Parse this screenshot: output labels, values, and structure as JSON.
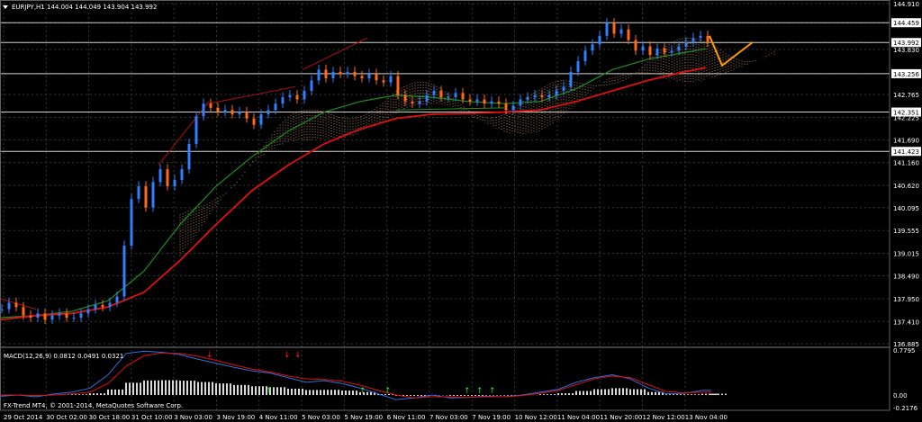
{
  "window": {
    "symbol_line": "EURJPY,H1  144.004 144.049 143.904 143.992",
    "copyright": "FX-Trend MT4, © 2001-2014, MetaQuotes Software Corp."
  },
  "macd": {
    "label": "MACD(12,26,9) 0.0812 0.0491 0.0321",
    "y_ticks": [
      "0.7795",
      "0.00",
      "-0.2176"
    ]
  },
  "colors": {
    "background": "#000000",
    "grid": "#2e3b2e",
    "axis": "#c0c0c0",
    "bull_candle": "#2f7fff",
    "bear_candle": "#ff6a1a",
    "ma_fast": "#1f8f1f",
    "ma_slow": "#e01010",
    "cloud": "#d4a373",
    "trend_line": "#b01010",
    "projection": "#ff9a00",
    "macd_hist": "#d8d8d8",
    "macd_main": "#2f6fe0",
    "macd_signal": "#e01010",
    "arrow_up": "#33dd33",
    "arrow_down": "#ff2020"
  },
  "chart_data": {
    "type": "line",
    "title": "EURJPY,H1  144.004 144.049 143.904 143.992",
    "y_ticks": [
      "144.910",
      "144.459",
      "143.992",
      "143.830",
      "143.256",
      "142.765",
      "142.351",
      "142.225",
      "141.690",
      "141.423",
      "141.160",
      "140.620",
      "140.095",
      "139.555",
      "139.015",
      "138.490",
      "137.950",
      "137.410",
      "136.885"
    ],
    "x_ticks": [
      "29 Oct 2014",
      "30 Oct 02:00",
      "30 Oct 18:00",
      "31 Oct 10:00",
      "3 Nov 03:00",
      "3 Nov 19:00",
      "4 Nov 11:00",
      "5 Nov 03:00",
      "5 Nov 19:00",
      "6 Nov 11:00",
      "7 Nov 03:00",
      "7 Nov 19:00",
      "10 Nov 12:00",
      "11 Nov 04:00",
      "11 Nov 20:00",
      "12 Nov 12:00",
      "13 Nov 04:00"
    ],
    "ylim": [
      136.885,
      144.91
    ],
    "highlight_levels": [
      144.459,
      143.992,
      143.256,
      142.351,
      141.423
    ],
    "series": [
      {
        "kind": "price",
        "x": [
          0,
          8,
          16,
          24,
          32,
          40,
          48,
          56,
          64,
          72,
          80,
          88,
          96,
          104,
          112,
          120,
          128,
          136,
          144,
          152,
          160,
          168,
          176,
          184,
          192,
          200,
          208,
          216,
          224,
          232,
          240,
          248,
          256,
          264,
          272,
          280,
          288,
          296,
          304,
          312,
          320,
          328,
          336,
          344,
          352,
          360,
          368,
          376,
          384,
          392,
          400,
          408,
          416,
          424,
          432,
          440,
          448,
          456,
          464,
          472,
          480,
          488,
          496,
          504,
          512,
          520,
          528,
          536,
          544,
          552,
          560,
          568,
          576,
          584,
          592,
          600,
          608,
          616,
          624,
          632,
          640,
          648,
          656,
          664,
          672,
          680,
          688,
          696,
          704,
          712,
          720,
          728,
          736,
          744,
          752,
          760,
          768,
          776,
          784
        ],
        "values": [
          137.7,
          137.85,
          137.75,
          137.55,
          137.5,
          137.6,
          137.45,
          137.55,
          137.6,
          137.5,
          137.5,
          137.6,
          137.7,
          137.8,
          137.75,
          137.85,
          138.0,
          139.2,
          140.3,
          140.6,
          140.1,
          140.7,
          141.0,
          140.6,
          140.75,
          141.0,
          141.6,
          142.25,
          142.55,
          142.45,
          142.35,
          142.4,
          142.3,
          142.35,
          142.2,
          142.05,
          142.3,
          142.4,
          142.55,
          142.7,
          142.75,
          142.65,
          142.85,
          143.1,
          143.35,
          143.15,
          143.3,
          143.25,
          143.3,
          143.2,
          143.15,
          143.25,
          143.1,
          143.05,
          143.2,
          142.75,
          142.6,
          142.55,
          142.6,
          142.75,
          142.85,
          142.7,
          142.7,
          142.8,
          142.65,
          142.6,
          142.65,
          142.55,
          142.6,
          142.55,
          142.4,
          142.5,
          142.65,
          142.7,
          142.75,
          142.7,
          142.75,
          142.85,
          142.95,
          143.3,
          143.55,
          143.8,
          143.95,
          144.15,
          144.45,
          144.2,
          144.3,
          144.05,
          143.8,
          143.9,
          143.7,
          143.85,
          143.75,
          143.8,
          143.9,
          144.0,
          144.1,
          144.15,
          143.99
        ]
      },
      {
        "kind": "ma_slow",
        "x": [
          0,
          40,
          80,
          120,
          160,
          200,
          240,
          280,
          320,
          360,
          400,
          440,
          480,
          520,
          560,
          600,
          640,
          680,
          720,
          760,
          784
        ],
        "values": [
          137.45,
          137.55,
          137.6,
          137.75,
          138.1,
          138.85,
          139.7,
          140.5,
          141.1,
          141.6,
          141.95,
          142.2,
          142.3,
          142.32,
          142.35,
          142.4,
          142.6,
          142.85,
          143.1,
          143.3,
          143.4
        ]
      },
      {
        "kind": "ma_fast",
        "x": [
          0,
          40,
          80,
          120,
          160,
          200,
          240,
          280,
          320,
          360,
          400,
          440,
          480,
          520,
          560,
          600,
          640,
          680,
          720,
          760,
          784
        ],
        "values": [
          137.5,
          137.55,
          137.65,
          137.9,
          138.6,
          139.7,
          140.6,
          141.3,
          141.9,
          142.35,
          142.6,
          142.75,
          142.7,
          142.6,
          142.55,
          142.6,
          142.9,
          143.35,
          143.6,
          143.75,
          143.85
        ]
      },
      {
        "kind": "projection",
        "x": [
          788,
          802,
          836
        ],
        "values": [
          144.15,
          143.45,
          144.0
        ]
      }
    ],
    "macd": {
      "x": [
        0,
        20,
        40,
        60,
        80,
        100,
        120,
        140,
        160,
        180,
        200,
        220,
        240,
        260,
        280,
        300,
        320,
        340,
        360,
        380,
        400,
        420,
        440,
        460,
        480,
        500,
        520,
        540,
        560,
        580,
        600,
        620,
        640,
        660,
        680,
        700,
        720,
        740,
        760,
        780,
        790
      ],
      "main": [
        -0.02,
        0.0,
        -0.03,
        0.02,
        0.05,
        0.12,
        0.35,
        0.72,
        0.76,
        0.74,
        0.7,
        0.62,
        0.55,
        0.48,
        0.42,
        0.38,
        0.3,
        0.22,
        0.25,
        0.2,
        0.12,
        0.02,
        -0.08,
        -0.05,
        0.0,
        -0.05,
        -0.04,
        -0.02,
        -0.03,
        0.0,
        0.05,
        0.1,
        0.22,
        0.3,
        0.35,
        0.28,
        0.12,
        0.02,
        0.03,
        0.08,
        0.08
      ],
      "signal": [
        0.0,
        0.0,
        -0.01,
        0.0,
        0.02,
        0.05,
        0.2,
        0.5,
        0.68,
        0.73,
        0.72,
        0.67,
        0.6,
        0.52,
        0.45,
        0.4,
        0.33,
        0.28,
        0.27,
        0.24,
        0.17,
        0.08,
        0.0,
        -0.05,
        -0.03,
        -0.03,
        -0.04,
        -0.03,
        -0.03,
        -0.01,
        0.03,
        0.08,
        0.18,
        0.28,
        0.33,
        0.3,
        0.18,
        0.06,
        0.04,
        0.05,
        0.05
      ]
    }
  }
}
